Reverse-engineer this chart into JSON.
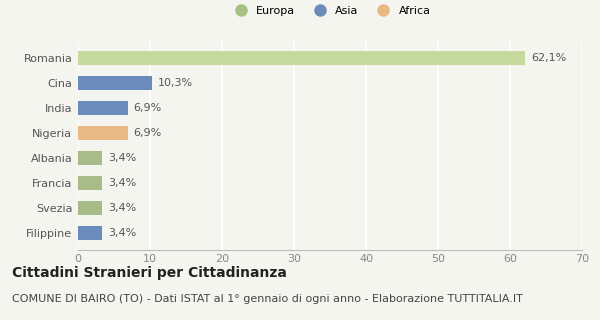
{
  "categories": [
    "Filippine",
    "Svezia",
    "Francia",
    "Albania",
    "Nigeria",
    "India",
    "Cina",
    "Romania"
  ],
  "values": [
    3.4,
    3.4,
    3.4,
    3.4,
    6.9,
    6.9,
    10.3,
    62.1
  ],
  "labels": [
    "3,4%",
    "3,4%",
    "3,4%",
    "3,4%",
    "6,9%",
    "6,9%",
    "10,3%",
    "62,1%"
  ],
  "colors": [
    "#6b8cba",
    "#a8bc8a",
    "#a8bc8a",
    "#a8bc8a",
    "#e8b885",
    "#6b8cba",
    "#6b8cba",
    "#c5d89d"
  ],
  "legend": [
    {
      "label": "Europa",
      "color": "#a8c080"
    },
    {
      "label": "Asia",
      "color": "#6b8cba"
    },
    {
      "label": "Africa",
      "color": "#e8b885"
    }
  ],
  "xlim": [
    0,
    70
  ],
  "xticks": [
    0,
    10,
    20,
    30,
    40,
    50,
    60,
    70
  ],
  "title": "Cittadini Stranieri per Cittadinanza",
  "subtitle": "COMUNE DI BAIRO (TO) - Dati ISTAT al 1° gennaio di ogni anno - Elaborazione TUTTITALIA.IT",
  "bg_color": "#f5f5f0",
  "bar_height": 0.55,
  "title_fontsize": 10,
  "subtitle_fontsize": 8,
  "label_fontsize": 8,
  "tick_fontsize": 8
}
